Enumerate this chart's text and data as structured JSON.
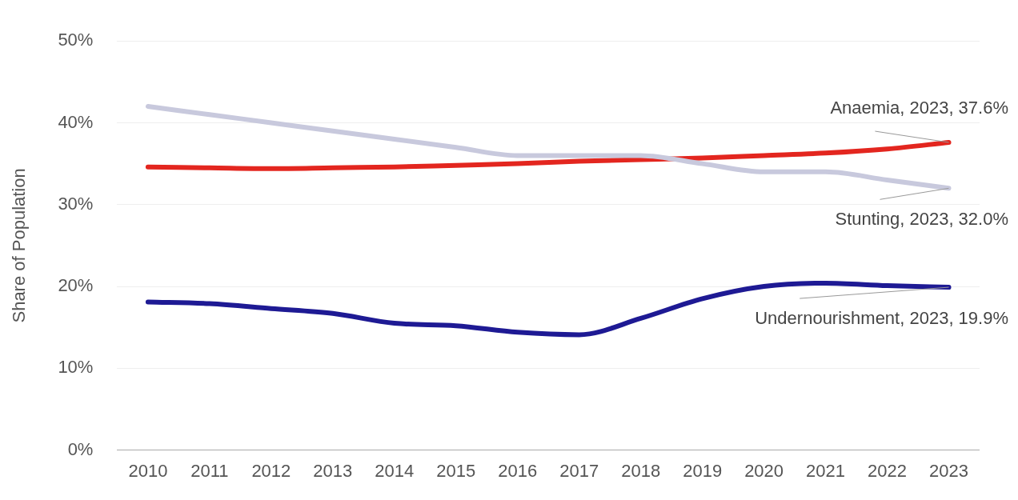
{
  "chart_data": {
    "type": "line",
    "ylabel": "Share of Population",
    "categories": [
      "2010",
      "2011",
      "2012",
      "2013",
      "2014",
      "2015",
      "2016",
      "2017",
      "2018",
      "2019",
      "2020",
      "2021",
      "2022",
      "2023"
    ],
    "series": [
      {
        "color": "#c8c9dd",
        "values": [
          42,
          41,
          40,
          39,
          38,
          37,
          36,
          36,
          36,
          35,
          34,
          34,
          33,
          32
        ]
      },
      {
        "color": "#e3261f",
        "values": [
          34.6,
          34.5,
          34.4,
          34.5,
          34.6,
          34.8,
          35.0,
          35.3,
          35.5,
          35.7,
          36.0,
          36.3,
          36.8,
          37.6
        ]
      },
      {
        "color": "#1e1a94",
        "values": [
          18.1,
          17.9,
          17.3,
          16.7,
          15.5,
          15.2,
          14.4,
          14.1,
          16.1,
          18.5,
          20.0,
          20.4,
          20.1,
          19.9
        ]
      }
    ],
    "ylim": [
      0,
      50
    ],
    "yticks": [
      {
        "value": 0,
        "label": "0%"
      },
      {
        "value": 10,
        "label": "10%"
      },
      {
        "value": 20,
        "label": "20%"
      },
      {
        "value": 30,
        "label": "30%"
      },
      {
        "value": 40,
        "label": "40%"
      },
      {
        "value": 50,
        "label": "50%"
      }
    ],
    "grid": "y",
    "legend": false,
    "marker": "none",
    "line_style": "solid",
    "annotations": [
      {
        "text": "Anaemia, 2023, 37.6%",
        "x": "2023",
        "y": 37.6
      },
      {
        "text": "Stunting, 2023, 32.0%",
        "x": "2023",
        "y": 32.0
      },
      {
        "text": "Undernourishment, 2023, 19.9%",
        "x": "2023",
        "y": 19.9
      }
    ]
  }
}
